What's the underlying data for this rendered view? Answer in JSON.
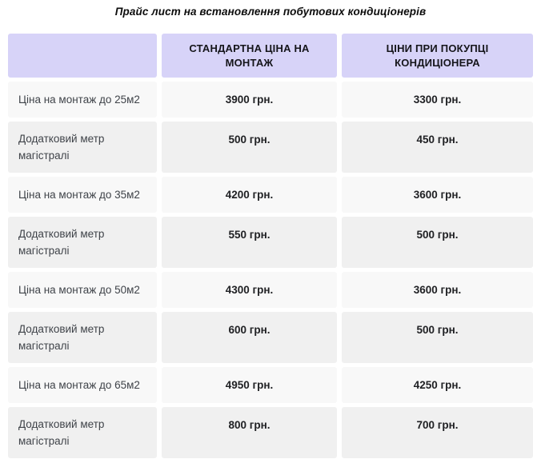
{
  "page": {
    "title": "Прайс лист на встановлення побутових кондиціонерів"
  },
  "table": {
    "columns": [
      "",
      "СТАНДАРТНА ЦІНА НА МОНТАЖ",
      "ЦІНИ ПРИ ПОКУПЦІ КОНДИЦІОНЕРА"
    ],
    "rows": [
      {
        "label": "Ціна на монтаж до 25м2",
        "standard": "3900 грн.",
        "purchase": "3300 грн."
      },
      {
        "label": "Додатковий метр магістралі",
        "standard": "500 грн.",
        "purchase": "450 грн."
      },
      {
        "label": "Ціна на монтаж до 35м2",
        "standard": "4200 грн.",
        "purchase": "3600 грн."
      },
      {
        "label": "Додатковий метр магістралі",
        "standard": "550 грн.",
        "purchase": "500 грн."
      },
      {
        "label": "Ціна на монтаж до 50м2",
        "standard": "4300 грн.",
        "purchase": "3600 грн."
      },
      {
        "label": "Додатковий метр магістралі",
        "standard": "600 грн.",
        "purchase": "500 грн."
      },
      {
        "label": "Ціна на монтаж до 65м2",
        "standard": "4950 грн.",
        "purchase": "4250 грн."
      },
      {
        "label": "Додатковий метр магістралі",
        "standard": "800 грн.",
        "purchase": "700 грн."
      }
    ],
    "colors": {
      "header_bg": "#d7d3f8",
      "row_odd_bg": "#f8f8f8",
      "row_even_bg": "#f0f0f0",
      "header_text": "#15151a",
      "label_text": "#3f4349",
      "value_text": "#202124"
    }
  }
}
